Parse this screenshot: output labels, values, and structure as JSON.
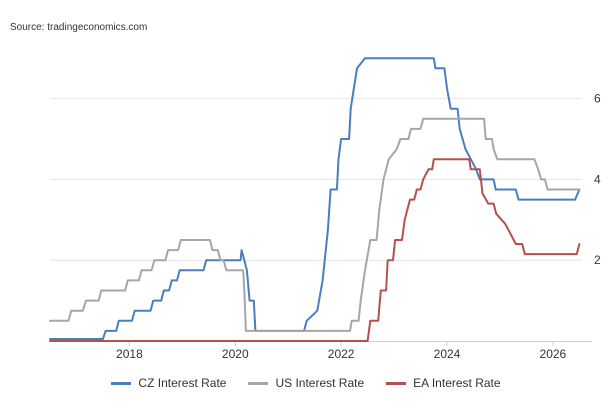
{
  "source_text": "Source: tradingeconomics.com",
  "chart_data": {
    "type": "line",
    "x_ticks": [
      "2018",
      "2020",
      "2022",
      "2024",
      "2026"
    ],
    "x_tick_values": [
      2018,
      2020,
      2022,
      2024,
      2026
    ],
    "xlim": [
      2016.5,
      2026.55
    ],
    "y_ticks": [
      "2",
      "4",
      "6"
    ],
    "y_tick_values": [
      2,
      4,
      6
    ],
    "ylim": [
      0,
      7.4
    ],
    "y_axis_side": "right",
    "grid": "horizontal",
    "legend_position": "bottom",
    "series": [
      {
        "name": "CZ Interest Rate",
        "color": "#4a7ebf",
        "points": [
          [
            2016.5,
            0.05
          ],
          [
            2017.5,
            0.05
          ],
          [
            2017.55,
            0.25
          ],
          [
            2017.75,
            0.25
          ],
          [
            2017.8,
            0.5
          ],
          [
            2018.05,
            0.5
          ],
          [
            2018.1,
            0.75
          ],
          [
            2018.4,
            0.75
          ],
          [
            2018.45,
            1.0
          ],
          [
            2018.6,
            1.0
          ],
          [
            2018.65,
            1.25
          ],
          [
            2018.75,
            1.25
          ],
          [
            2018.8,
            1.5
          ],
          [
            2018.9,
            1.5
          ],
          [
            2018.95,
            1.75
          ],
          [
            2019.4,
            1.75
          ],
          [
            2019.45,
            2.0
          ],
          [
            2020.1,
            2.0
          ],
          [
            2020.12,
            2.25
          ],
          [
            2020.17,
            2.0
          ],
          [
            2020.22,
            1.75
          ],
          [
            2020.27,
            1.0
          ],
          [
            2020.35,
            1.0
          ],
          [
            2020.38,
            0.25
          ],
          [
            2021.3,
            0.25
          ],
          [
            2021.35,
            0.5
          ],
          [
            2021.55,
            0.75
          ],
          [
            2021.65,
            1.5
          ],
          [
            2021.75,
            2.75
          ],
          [
            2021.8,
            3.75
          ],
          [
            2021.92,
            3.75
          ],
          [
            2021.95,
            4.5
          ],
          [
            2022.0,
            5.0
          ],
          [
            2022.15,
            5.0
          ],
          [
            2022.18,
            5.75
          ],
          [
            2022.3,
            6.75
          ],
          [
            2022.45,
            7.0
          ],
          [
            2023.75,
            7.0
          ],
          [
            2023.78,
            6.75
          ],
          [
            2023.95,
            6.75
          ],
          [
            2024.0,
            6.25
          ],
          [
            2024.07,
            5.75
          ],
          [
            2024.2,
            5.75
          ],
          [
            2024.24,
            5.25
          ],
          [
            2024.35,
            4.75
          ],
          [
            2024.45,
            4.5
          ],
          [
            2024.55,
            4.25
          ],
          [
            2024.62,
            4.0
          ],
          [
            2024.88,
            4.0
          ],
          [
            2024.92,
            3.75
          ],
          [
            2025.3,
            3.75
          ],
          [
            2025.35,
            3.5
          ],
          [
            2026.42,
            3.5
          ],
          [
            2026.5,
            3.75
          ]
        ]
      },
      {
        "name": "US Interest Rate",
        "color": "#a6a6a6",
        "points": [
          [
            2016.5,
            0.5
          ],
          [
            2016.85,
            0.5
          ],
          [
            2016.9,
            0.75
          ],
          [
            2017.12,
            0.75
          ],
          [
            2017.18,
            1.0
          ],
          [
            2017.42,
            1.0
          ],
          [
            2017.47,
            1.25
          ],
          [
            2017.92,
            1.25
          ],
          [
            2017.97,
            1.5
          ],
          [
            2018.18,
            1.5
          ],
          [
            2018.23,
            1.75
          ],
          [
            2018.42,
            1.75
          ],
          [
            2018.47,
            2.0
          ],
          [
            2018.68,
            2.0
          ],
          [
            2018.73,
            2.25
          ],
          [
            2018.92,
            2.25
          ],
          [
            2018.97,
            2.5
          ],
          [
            2019.52,
            2.5
          ],
          [
            2019.57,
            2.25
          ],
          [
            2019.67,
            2.25
          ],
          [
            2019.72,
            2.0
          ],
          [
            2019.78,
            2.0
          ],
          [
            2019.83,
            1.75
          ],
          [
            2020.15,
            1.75
          ],
          [
            2020.17,
            1.25
          ],
          [
            2020.2,
            0.25
          ],
          [
            2022.17,
            0.25
          ],
          [
            2022.2,
            0.5
          ],
          [
            2022.33,
            0.5
          ],
          [
            2022.37,
            1.0
          ],
          [
            2022.45,
            1.75
          ],
          [
            2022.55,
            2.5
          ],
          [
            2022.67,
            2.5
          ],
          [
            2022.72,
            3.25
          ],
          [
            2022.8,
            4.0
          ],
          [
            2022.9,
            4.5
          ],
          [
            2023.05,
            4.75
          ],
          [
            2023.12,
            5.0
          ],
          [
            2023.27,
            5.0
          ],
          [
            2023.32,
            5.25
          ],
          [
            2023.5,
            5.25
          ],
          [
            2023.55,
            5.5
          ],
          [
            2024.7,
            5.5
          ],
          [
            2024.73,
            5.0
          ],
          [
            2024.85,
            5.0
          ],
          [
            2024.88,
            4.75
          ],
          [
            2024.95,
            4.5
          ],
          [
            2025.65,
            4.5
          ],
          [
            2025.72,
            4.25
          ],
          [
            2025.78,
            4.0
          ],
          [
            2025.85,
            4.0
          ],
          [
            2025.9,
            3.75
          ],
          [
            2026.5,
            3.75
          ]
        ]
      },
      {
        "name": "EA Interest Rate",
        "color": "#b5504a",
        "points": [
          [
            2016.5,
            0.0
          ],
          [
            2022.5,
            0.0
          ],
          [
            2022.55,
            0.5
          ],
          [
            2022.7,
            0.5
          ],
          [
            2022.75,
            1.25
          ],
          [
            2022.85,
            1.25
          ],
          [
            2022.88,
            2.0
          ],
          [
            2022.98,
            2.0
          ],
          [
            2023.02,
            2.5
          ],
          [
            2023.15,
            2.5
          ],
          [
            2023.2,
            3.0
          ],
          [
            2023.3,
            3.5
          ],
          [
            2023.38,
            3.5
          ],
          [
            2023.43,
            3.75
          ],
          [
            2023.5,
            3.75
          ],
          [
            2023.55,
            4.0
          ],
          [
            2023.65,
            4.25
          ],
          [
            2023.72,
            4.25
          ],
          [
            2023.75,
            4.5
          ],
          [
            2024.42,
            4.5
          ],
          [
            2024.45,
            4.25
          ],
          [
            2024.62,
            4.25
          ],
          [
            2024.67,
            3.65
          ],
          [
            2024.78,
            3.4
          ],
          [
            2024.88,
            3.4
          ],
          [
            2024.93,
            3.15
          ],
          [
            2025.1,
            2.9
          ],
          [
            2025.2,
            2.65
          ],
          [
            2025.3,
            2.4
          ],
          [
            2025.42,
            2.4
          ],
          [
            2025.47,
            2.15
          ],
          [
            2026.45,
            2.15
          ],
          [
            2026.5,
            2.4
          ]
        ]
      }
    ]
  }
}
